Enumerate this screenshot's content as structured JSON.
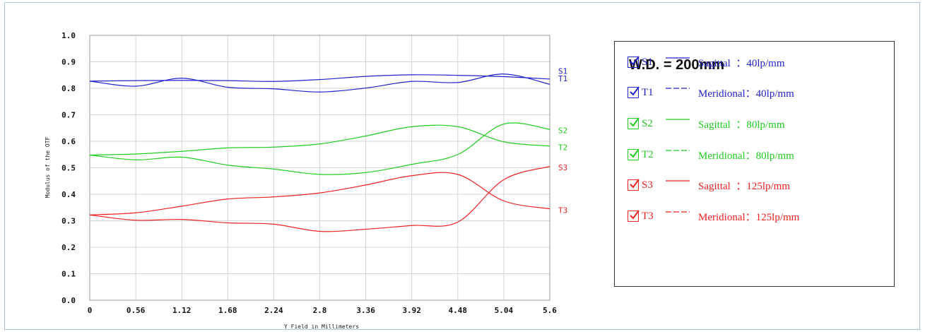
{
  "chart_data": {
    "type": "line",
    "xlabel": "Y Field in Millimeters",
    "ylabel": "Modulus of the OTF",
    "xlim": [
      0,
      5.6
    ],
    "ylim": [
      0,
      1.0
    ],
    "xticks": [
      "0",
      "0.56",
      "1.12",
      "1.68",
      "2.24",
      "2.8",
      "3.36",
      "3.92",
      "4.48",
      "5.04",
      "5.6"
    ],
    "yticks": [
      "0.0",
      "0.1",
      "0.2",
      "0.3",
      "0.4",
      "0.5",
      "0.6",
      "0.7",
      "0.8",
      "0.9",
      "1.0"
    ],
    "grid": true,
    "x": [
      0,
      0.56,
      1.12,
      1.68,
      2.24,
      2.8,
      3.36,
      3.92,
      4.48,
      5.04,
      5.6
    ],
    "series": [
      {
        "name": "S1",
        "color": "#2222cc",
        "values": [
          0.827,
          0.829,
          0.83,
          0.829,
          0.826,
          0.833,
          0.845,
          0.851,
          0.849,
          0.844,
          0.835
        ]
      },
      {
        "name": "T1",
        "color": "#2222cc",
        "values": [
          0.827,
          0.808,
          0.838,
          0.804,
          0.798,
          0.786,
          0.801,
          0.826,
          0.822,
          0.854,
          0.815
        ]
      },
      {
        "name": "S2",
        "color": "#22cc22",
        "values": [
          0.548,
          0.552,
          0.562,
          0.575,
          0.578,
          0.59,
          0.62,
          0.655,
          0.655,
          0.598,
          0.582
        ]
      },
      {
        "name": "T2",
        "color": "#22cc22",
        "values": [
          0.548,
          0.53,
          0.54,
          0.51,
          0.495,
          0.475,
          0.482,
          0.513,
          0.55,
          0.665,
          0.645
        ]
      },
      {
        "name": "S3",
        "color": "#ee2222",
        "values": [
          0.322,
          0.33,
          0.355,
          0.382,
          0.39,
          0.405,
          0.435,
          0.47,
          0.475,
          0.375,
          0.345
        ]
      },
      {
        "name": "T3",
        "color": "#ee2222",
        "values": [
          0.322,
          0.302,
          0.305,
          0.292,
          0.287,
          0.26,
          0.268,
          0.282,
          0.295,
          0.455,
          0.505
        ]
      }
    ],
    "end_labels": [
      {
        "text": "S1",
        "color": "#2222cc",
        "y": 0.866
      },
      {
        "text": "T1",
        "color": "#2222cc",
        "y": 0.838
      },
      {
        "text": "S2",
        "color": "#22cc22",
        "y": 0.642
      },
      {
        "text": "T2",
        "color": "#22cc22",
        "y": 0.578
      },
      {
        "text": "S3",
        "color": "#ee2222",
        "y": 0.502
      },
      {
        "text": "T3",
        "color": "#ee2222",
        "y": 0.34
      }
    ]
  },
  "legend": {
    "title": "W.D. = 200mm",
    "items": [
      {
        "code": "S1",
        "style": "solid",
        "color": "#2222cc",
        "desc": "Sagittal  ：40lp/mm"
      },
      {
        "code": "T1",
        "style": "dashed",
        "color": "#2222cc",
        "desc": "Meridional：40lp/mm"
      },
      {
        "code": "S2",
        "style": "solid",
        "color": "#22cc22",
        "desc": "Sagittal  ：80lp/mm"
      },
      {
        "code": "T2",
        "style": "dashed",
        "color": "#22cc22",
        "desc": "Meridional：80lp/mm"
      },
      {
        "code": "S3",
        "style": "solid",
        "color": "#ee2222",
        "desc": "Sagittal  ：125lp/mm"
      },
      {
        "code": "T3",
        "style": "dashed",
        "color": "#ee2222",
        "desc": "Meridional：125lp/mm"
      }
    ]
  }
}
